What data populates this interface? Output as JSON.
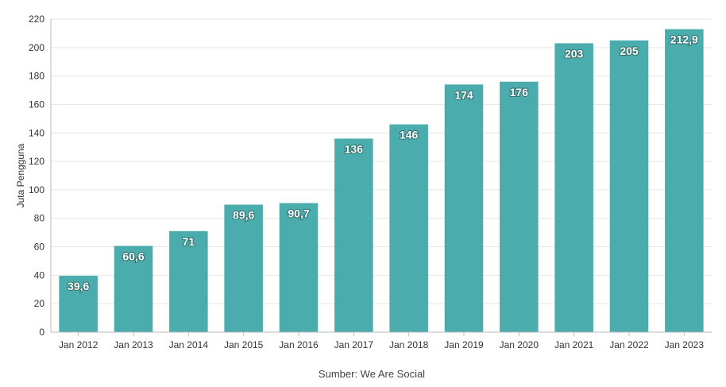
{
  "chart_data": {
    "type": "bar",
    "title": "",
    "xlabel": "",
    "ylabel": "Juta Pengguna",
    "source": "Sumber: We Are Social",
    "categories": [
      "Jan 2012",
      "Jan 2013",
      "Jan 2014",
      "Jan 2015",
      "Jan 2016",
      "Jan 2017",
      "Jan 2018",
      "Jan 2019",
      "Jan 2020",
      "Jan 2021",
      "Jan 2022",
      "Jan 2023"
    ],
    "values": [
      39.6,
      60.6,
      71,
      89.6,
      90.7,
      136,
      146,
      174,
      176,
      203,
      205,
      212.9
    ],
    "value_labels": [
      "39,6",
      "60,6",
      "71",
      "89,6",
      "90,7",
      "136",
      "146",
      "174",
      "176",
      "203",
      "205",
      "212,9"
    ],
    "y_ticks": [
      0,
      20,
      40,
      60,
      80,
      100,
      120,
      140,
      160,
      180,
      200,
      220
    ],
    "ylim": [
      0,
      220
    ],
    "bar_color": "#4aacac",
    "grid": true,
    "legend": "none"
  }
}
